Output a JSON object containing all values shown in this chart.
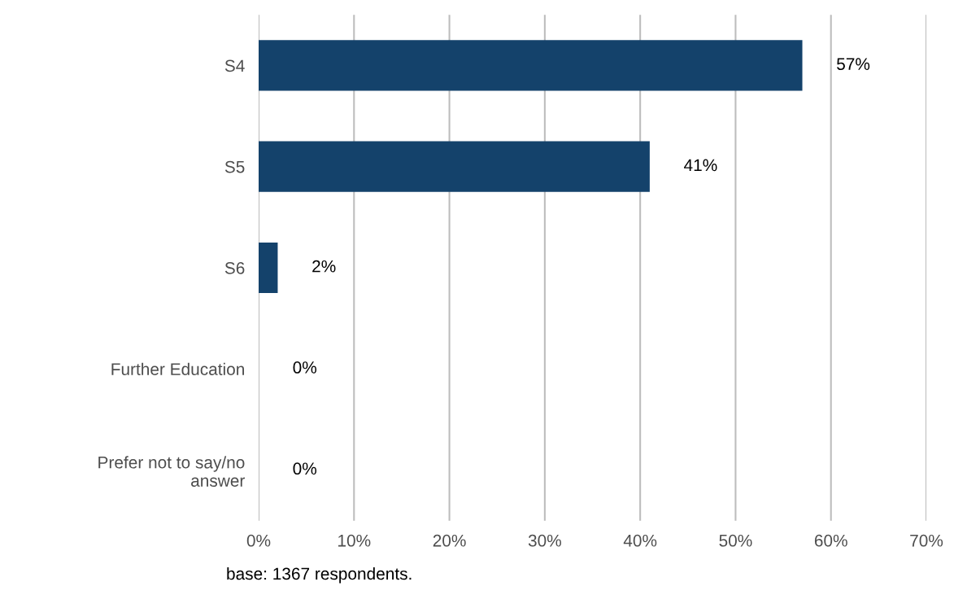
{
  "chart_data": {
    "type": "bar",
    "orientation": "horizontal",
    "categories": [
      "S4",
      "S5",
      "S6",
      "Further Education",
      "Prefer not to say/no\nanswer"
    ],
    "values": [
      57,
      41,
      2,
      0,
      0
    ],
    "value_labels": [
      "57%",
      "41%",
      "2%",
      "0%",
      "0%"
    ],
    "color": "#14426b",
    "xlim": [
      0,
      70
    ],
    "xticks": [
      {
        "value": 0,
        "label": "0%"
      },
      {
        "value": 10,
        "label": "10%"
      },
      {
        "value": 20,
        "label": "20%"
      },
      {
        "value": 30,
        "label": "30%"
      },
      {
        "value": 40,
        "label": "40%"
      },
      {
        "value": 50,
        "label": "50%"
      },
      {
        "value": 60,
        "label": "60%"
      },
      {
        "value": 70,
        "label": "70%"
      }
    ],
    "grid": "x",
    "annotations": [
      "base: 1367 respondents."
    ]
  }
}
